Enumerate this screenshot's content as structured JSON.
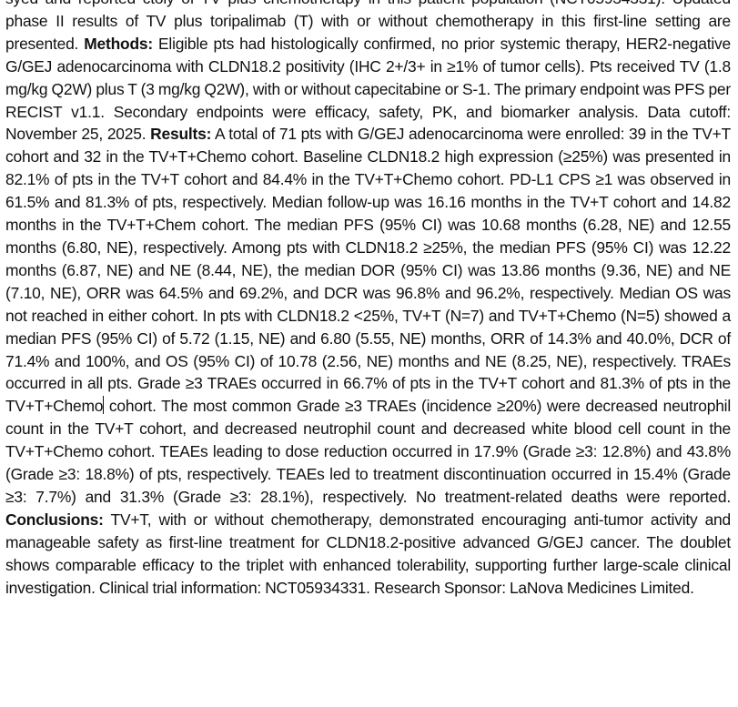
{
  "abstract": {
    "intro_cut": "syed and reported ctoiy of TV plus chemotherapy in this patient population (NCT05934331).",
    "background_text": "Updated phase II results of TV plus toripalimab (T) with or without chemotherapy in this first-line setting are presented.",
    "methods_label": "Methods:",
    "methods_text": "Eligible pts had histologically confirmed, no prior systemic therapy, HER2-negative G/GEJ adenocarcinoma with CLDN18.2 positivity (IHC 2+/3+ in ≥1% of tumor cells). Pts received TV (1.8 mg/kg Q2W) plus T (3 mg/kg Q2W), with or without capecitabine or S-1. The primary endpoint was PFS per RECIST v1.1. Secondary endpoints were efficacy, safety, PK, and biomarker analysis. Data cutoff: November 25, 2025.",
    "results_label": "Results:",
    "results_text_a": "A total of 71 pts with G/GEJ adenocarcinoma were enrolled: 39 in the TV+T cohort and 32 in the TV+T+Chemo cohort. Baseline CLDN18.2 high expression (≥25%) was presented in 82.1% of pts in the TV+T cohort and 84.4% in the TV+T+Chemo cohort. PD-L1 CPS ≥1 was observed in 61.5% and 81.3% of pts, respectively. Median follow-up was 16.16 months in the TV+T cohort and 14.82 months in the TV+T+Chem cohort. The median PFS (95% CI) was 10.68 months (6.28, NE) and 12.55 months (6.80, NE), respectively. Among pts with CLDN18.2 ≥25%, the median PFS (95% CI) was 12.22 months (6.87, NE) and NE (8.44, NE), the median DOR (95% CI) was 13.86 months (9.36, NE) and NE (7.10, NE), ORR was 64.5% and 69.2%, and DCR was 96.8% and 96.2%, respectively. Median OS was not reached in either cohort. In pts with CLDN18.2 <25%, TV+T (N=7) and TV+T+Chemo (N=5) showed a median PFS (95% CI) of 5.72 (1.15, NE) and 6.80 (5.55, NE) months, ORR of 14.3% and 40.0%, DCR of 71.4% and 100%, and OS (95% CI) of 10.78 (2.56, NE) months and NE (8.25, NE), respectively. TRAEs occurred in all pts. Grade ≥3 TRAEs occurred in 66.7% of pts in the TV+T cohort and 81.3% of pts in the TV+T+Chemo",
    "results_text_b": " cohort. The most common Grade ≥3 TRAEs (incidence ≥20%) were decreased neutrophil count in the TV+T cohort, and decreased neutrophil count and decreased white blood cell count in the TV+T+Chemo cohort. TEAEs leading to dose reduction occurred in 17.9% (Grade ≥3: 12.8%) and 43.8% (Grade ≥3: 18.8%) of pts, respectively. TEAEs led to treatment discontinuation occurred in 15.4% (Grade ≥3: 7.7%) and 31.3% (Grade ≥3: 28.1%), respectively. No treatment-related deaths were reported.",
    "conclusions_label": "Conclusions:",
    "conclusions_text": "TV+T, with or without chemotherapy, demonstrated encouraging anti-tumor activity and manageable safety as first-line treatment for CLDN18.2-positive advanced G/GEJ cancer. The doublet shows comparable efficacy to the triplet with enhanced tolerability, supporting further large-scale clinical investigation.",
    "trial_info": "Clinical trial information: NCT05934331. Research Sponsor: LaNova Medicines Limited."
  }
}
